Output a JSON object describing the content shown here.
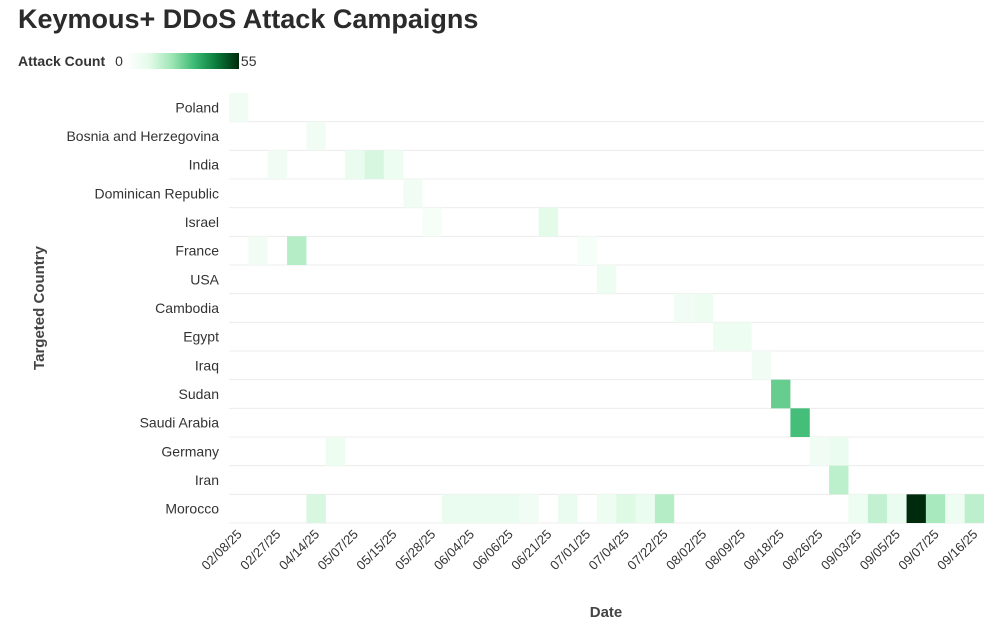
{
  "title": "Keymous+ DDoS Attack Campaigns",
  "legend": {
    "label": "Attack Count",
    "min": "0",
    "max": "55"
  },
  "chart_data": {
    "type": "heatmap",
    "title": "Keymous+ DDoS Attack Campaigns",
    "xlabel": "Date",
    "ylabel": "Targeted Country",
    "color_range": [
      0,
      55
    ],
    "colors": [
      "#ffffff",
      "#e3fbe9",
      "#9fe6b6",
      "#3cba73",
      "#0a7a3b",
      "#002a0c"
    ],
    "x_tick_labels": [
      "02/08/25",
      "02/27/25",
      "04/14/25",
      "05/07/25",
      "05/15/25",
      "05/28/25",
      "06/04/25",
      "06/06/25",
      "06/21/25",
      "07/01/25",
      "07/04/25",
      "07/22/25",
      "08/02/25",
      "08/09/25",
      "08/18/25",
      "08/26/25",
      "09/03/25",
      "09/05/25",
      "09/07/25",
      "09/16/25"
    ],
    "x_column_count": 39,
    "rows": [
      "Poland",
      "Bosnia and Herzegovina",
      "India",
      "Dominican Republic",
      "Israel",
      "France",
      "USA",
      "Cambodia",
      "Egypt",
      "Iraq",
      "Sudan",
      "Saudi Arabia",
      "Germany",
      "Iran",
      "Morocco"
    ],
    "cells": [
      {
        "row": "Poland",
        "col": 0,
        "value": 3
      },
      {
        "row": "Bosnia and Herzegovina",
        "col": 4,
        "value": 3
      },
      {
        "row": "India",
        "col": 2,
        "value": 3
      },
      {
        "row": "India",
        "col": 6,
        "value": 5
      },
      {
        "row": "India",
        "col": 7,
        "value": 9
      },
      {
        "row": "India",
        "col": 8,
        "value": 4
      },
      {
        "row": "Dominican Republic",
        "col": 9,
        "value": 3
      },
      {
        "row": "Israel",
        "col": 10,
        "value": 2
      },
      {
        "row": "Israel",
        "col": 16,
        "value": 7
      },
      {
        "row": "France",
        "col": 1,
        "value": 3
      },
      {
        "row": "France",
        "col": 3,
        "value": 14
      },
      {
        "row": "France",
        "col": 18,
        "value": 2
      },
      {
        "row": "USA",
        "col": 19,
        "value": 4
      },
      {
        "row": "Cambodia",
        "col": 23,
        "value": 3
      },
      {
        "row": "Cambodia",
        "col": 24,
        "value": 4
      },
      {
        "row": "Egypt",
        "col": 25,
        "value": 4
      },
      {
        "row": "Egypt",
        "col": 26,
        "value": 4
      },
      {
        "row": "Iraq",
        "col": 27,
        "value": 3
      },
      {
        "row": "Sudan",
        "col": 28,
        "value": 24
      },
      {
        "row": "Saudi Arabia",
        "col": 29,
        "value": 28
      },
      {
        "row": "Germany",
        "col": 5,
        "value": 4
      },
      {
        "row": "Germany",
        "col": 30,
        "value": 3
      },
      {
        "row": "Germany",
        "col": 31,
        "value": 5
      },
      {
        "row": "Iran",
        "col": 31,
        "value": 13
      },
      {
        "row": "Morocco",
        "col": 4,
        "value": 9
      },
      {
        "row": "Morocco",
        "col": 11,
        "value": 5
      },
      {
        "row": "Morocco",
        "col": 12,
        "value": 5
      },
      {
        "row": "Morocco",
        "col": 13,
        "value": 5
      },
      {
        "row": "Morocco",
        "col": 14,
        "value": 5
      },
      {
        "row": "Morocco",
        "col": 15,
        "value": 3
      },
      {
        "row": "Morocco",
        "col": 17,
        "value": 5
      },
      {
        "row": "Morocco",
        "col": 19,
        "value": 4
      },
      {
        "row": "Morocco",
        "col": 20,
        "value": 8
      },
      {
        "row": "Morocco",
        "col": 21,
        "value": 5
      },
      {
        "row": "Morocco",
        "col": 22,
        "value": 14
      },
      {
        "row": "Morocco",
        "col": 32,
        "value": 4
      },
      {
        "row": "Morocco",
        "col": 33,
        "value": 12
      },
      {
        "row": "Morocco",
        "col": 34,
        "value": 5
      },
      {
        "row": "Morocco",
        "col": 35,
        "value": 55
      },
      {
        "row": "Morocco",
        "col": 36,
        "value": 16
      },
      {
        "row": "Morocco",
        "col": 37,
        "value": 4
      },
      {
        "row": "Morocco",
        "col": 38,
        "value": 13
      }
    ],
    "grid": true
  }
}
